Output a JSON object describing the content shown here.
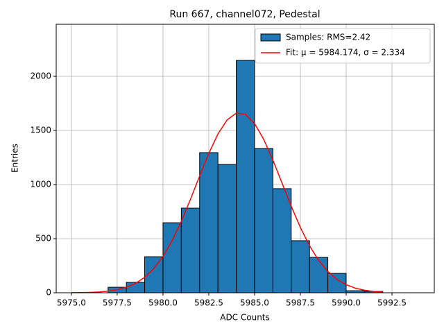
{
  "chart_data": {
    "type": "histogram",
    "title": "Run 667, channel072, Pedestal",
    "xlabel": "ADC Counts",
    "ylabel": "Entries",
    "xlim": [
      5974.17,
      5994.81
    ],
    "ylim": [
      0,
      2481
    ],
    "xticks": [
      {
        "value": 5975,
        "label": "5975.0"
      },
      {
        "value": 5977.5,
        "label": "5977.5"
      },
      {
        "value": 5980,
        "label": "5980.0"
      },
      {
        "value": 5982.5,
        "label": "5982.5"
      },
      {
        "value": 5985,
        "label": "5985.0"
      },
      {
        "value": 5987.5,
        "label": "5987.5"
      },
      {
        "value": 5990,
        "label": "5990.0"
      },
      {
        "value": 5992.5,
        "label": "5992.5"
      }
    ],
    "yticks": [
      0,
      500,
      1000,
      1500,
      2000
    ],
    "grid": true,
    "legend": "upper right",
    "series": [
      {
        "type": "histogram",
        "name": "Samples: RMS=2.42",
        "color": "#1f77b4",
        "edgecolor": "#000000",
        "bins": [
          5977,
          5978,
          5979,
          5980,
          5981,
          5982,
          5983,
          5984,
          5985,
          5986,
          5987,
          5988,
          5989,
          5990,
          5991,
          5992
        ],
        "values": [
          51,
          96,
          333,
          647,
          782,
          1295,
          1186,
          2147,
          1333,
          962,
          481,
          327,
          179,
          19,
          13
        ]
      },
      {
        "type": "line",
        "name": "Fit: μ = 5984.174, σ = 2.334",
        "color": "#ff0000",
        "x": [
          5975,
          5975.5,
          5976,
          5976.5,
          5977,
          5977.5,
          5978,
          5978.5,
          5979,
          5979.5,
          5980,
          5980.5,
          5981,
          5981.5,
          5982,
          5982.5,
          5983,
          5983.5,
          5984,
          5984.5,
          5985,
          5985.5,
          5986,
          5986.5,
          5987,
          5987.5,
          5988,
          5988.5,
          5989,
          5989.5,
          5990,
          5990.5,
          5991,
          5991.5,
          5992
        ],
        "values": [
          0.7,
          1.7,
          3.6,
          7.5,
          14.8,
          27.9,
          50.3,
          86.7,
          142.7,
          224.1,
          336.5,
          482.3,
          660.5,
          863.8,
          1079.1,
          1287.4,
          1467.2,
          1597.1,
          1660.4,
          1648.8,
          1564.0,
          1416.9,
          1226.1,
          1013.3,
          800.0,
          603.1,
          434.4,
          298.9,
          196.3,
          123.2,
          73.9,
          42.3,
          23.1,
          12.1,
          6.0
        ]
      }
    ]
  }
}
